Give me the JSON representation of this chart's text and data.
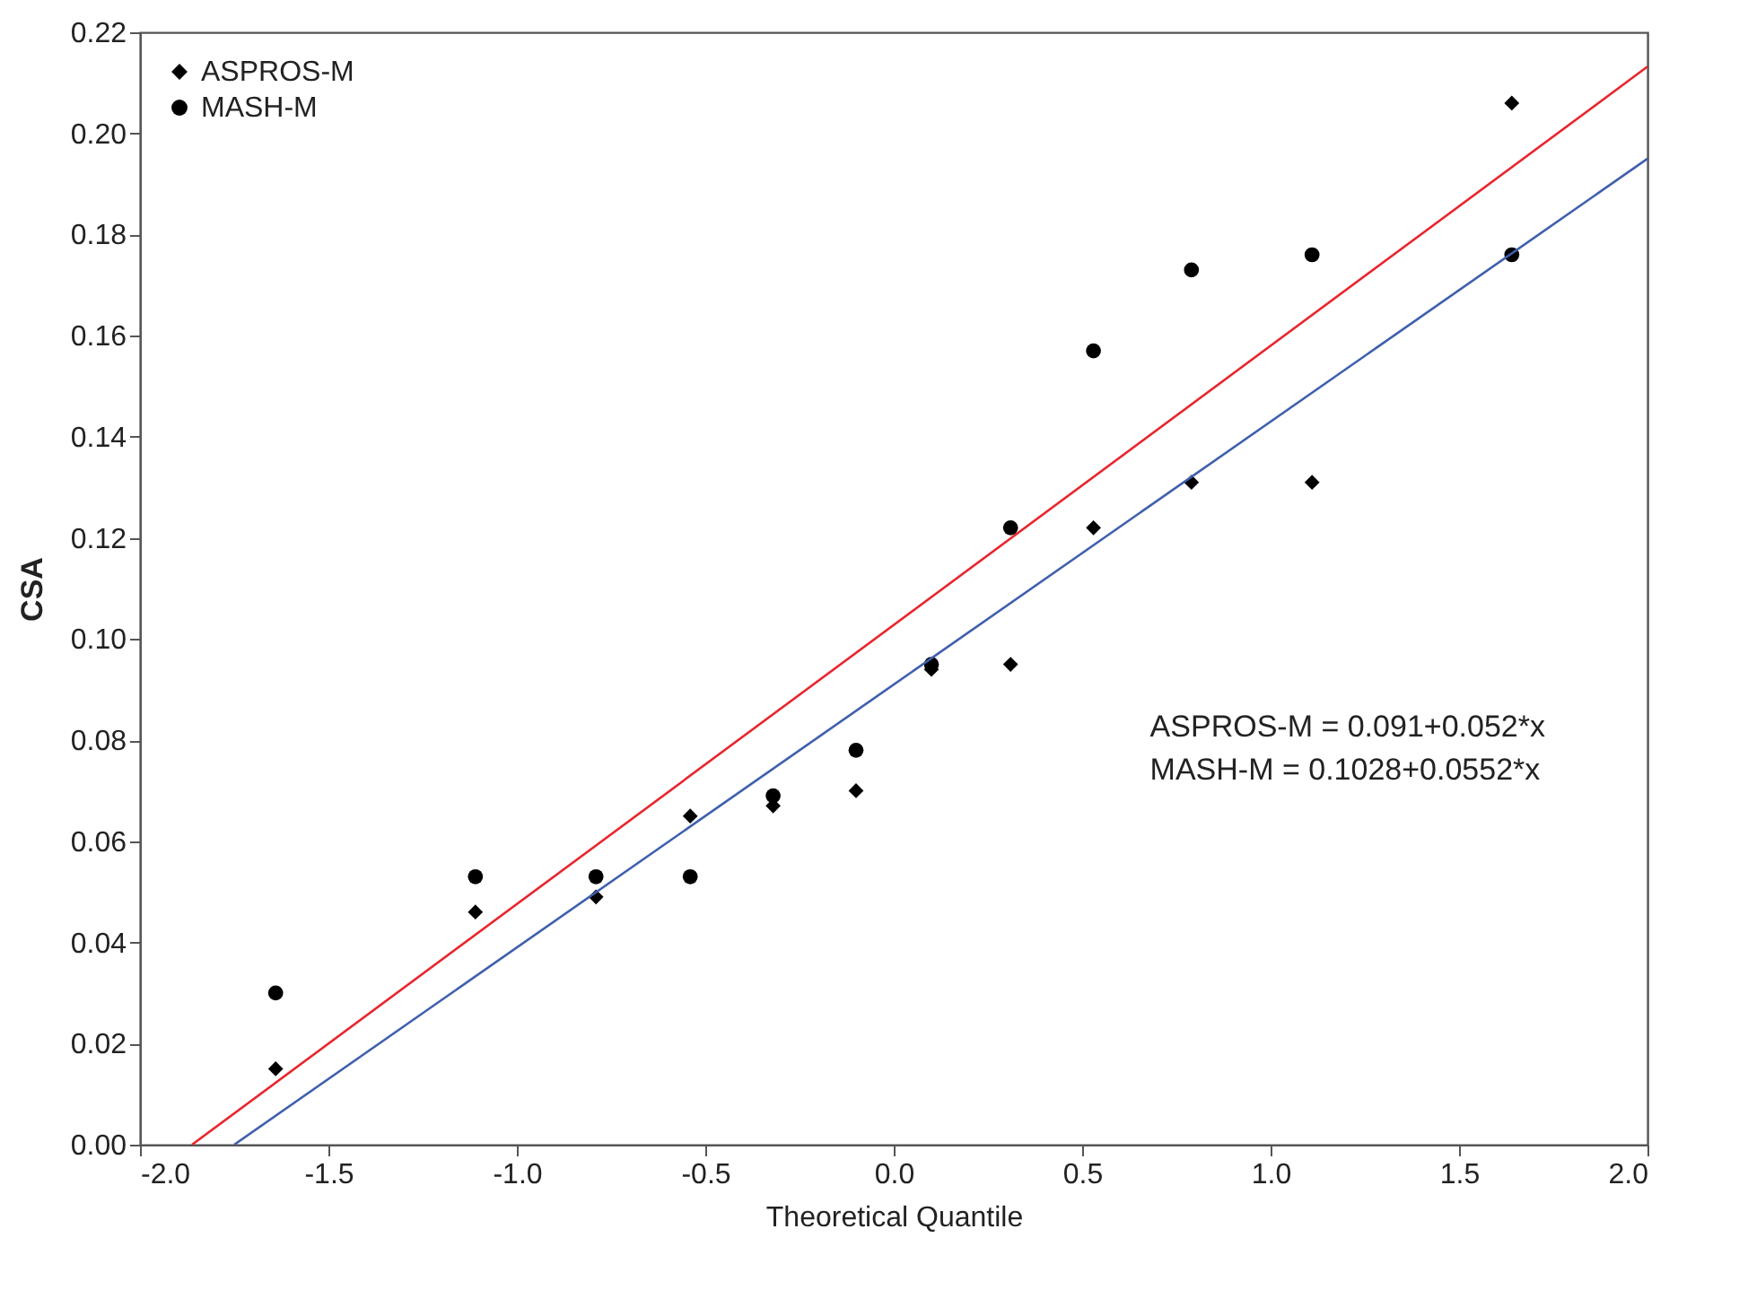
{
  "chart_data": {
    "type": "scatter",
    "xlabel": "Theoretical Quantile",
    "ylabel": "CSA",
    "x": [
      -1.64,
      -1.11,
      -0.79,
      -0.54,
      -0.32,
      -0.1,
      0.1,
      0.31,
      0.53,
      0.79,
      1.11,
      1.64
    ],
    "series": [
      {
        "name": "ASPROS-M",
        "color": "#000000",
        "marker": "diamond",
        "values": [
          0.015,
          0.046,
          0.049,
          0.065,
          0.067,
          0.07,
          0.094,
          0.095,
          0.122,
          0.131,
          0.131,
          0.206
        ]
      },
      {
        "name": "MASH-M",
        "color": "#000000",
        "marker": "circle",
        "values": [
          0.03,
          0.053,
          0.053,
          0.053,
          0.069,
          0.078,
          0.095,
          0.122,
          0.157,
          0.173,
          0.176,
          0.176
        ]
      },
      {
        "type": "line",
        "color": "#3f5fae",
        "x": [
          -1.75,
          2.0
        ],
        "values": [
          0,
          0.195
        ]
      },
      {
        "type": "line",
        "color": "#e8262d",
        "x": [
          -1.862,
          2.0
        ],
        "values": [
          0,
          0.2132
        ]
      }
    ],
    "annotations": [
      "ASPROS-M = 0.091+0.052*x",
      "MASH-M = 0.1028+0.0552*x"
    ],
    "xlim": [
      -2.0,
      2.0
    ],
    "xticks": [
      {
        "value": -2,
        "label": "-2.0"
      },
      {
        "value": -1.5,
        "label": "-1.5"
      },
      {
        "value": -1,
        "label": "-1.0"
      },
      {
        "value": -0.5,
        "label": "-0.5"
      },
      {
        "value": 0,
        "label": "0.0"
      },
      0.5,
      {
        "value": 1,
        "label": "1.0"
      },
      1.5,
      {
        "value": 2,
        "label": "2.0"
      }
    ],
    "ylim": [
      0,
      0.22
    ],
    "yticks": [
      {
        "value": 0,
        "label": "0.00"
      },
      0.02,
      0.04,
      0.06,
      0.08,
      {
        "value": 0.1,
        "label": "0.10"
      },
      0.12,
      0.14,
      0.16,
      0.18,
      {
        "value": 0.2,
        "label": "0.20"
      },
      0.22
    ],
    "grid": false,
    "legend": "top left"
  }
}
